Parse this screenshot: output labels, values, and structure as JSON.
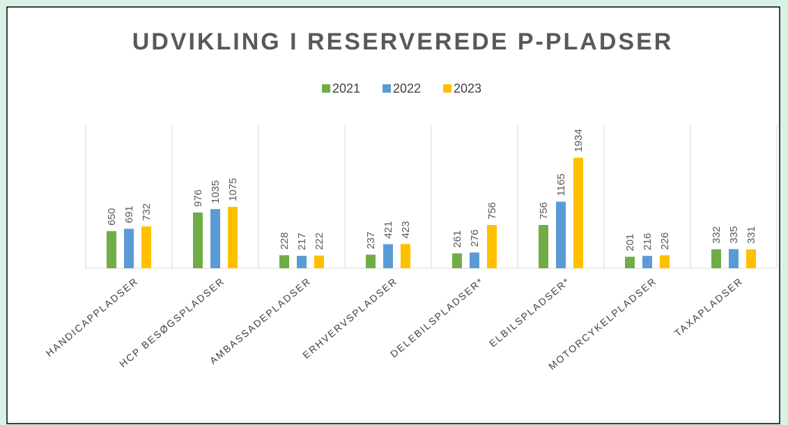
{
  "chart_data": {
    "type": "bar",
    "title": "UDVIKLING I RESERVEREDE P-PLADSER",
    "categories": [
      "HANDICAPPLADSER",
      "HCP BESØGSPLADSER",
      "AMBASSADEPLADSER",
      "ERHVERVSPLADSER",
      "DELEBILSPLADSER*",
      "ELBILSPLADSER*",
      "MOTORCYKELPLADSER",
      "TAXAPLADSER"
    ],
    "series": [
      {
        "name": "2021",
        "color": "#70ad47",
        "values": [
          650,
          976,
          228,
          237,
          261,
          756,
          201,
          332
        ]
      },
      {
        "name": "2022",
        "color": "#5b9bd5",
        "values": [
          691,
          1035,
          217,
          421,
          276,
          1165,
          216,
          335
        ]
      },
      {
        "name": "2023",
        "color": "#ffc000",
        "values": [
          732,
          1075,
          222,
          423,
          756,
          1934,
          226,
          331
        ]
      }
    ],
    "ylim": [
      0,
      2500
    ],
    "legend": "top"
  }
}
